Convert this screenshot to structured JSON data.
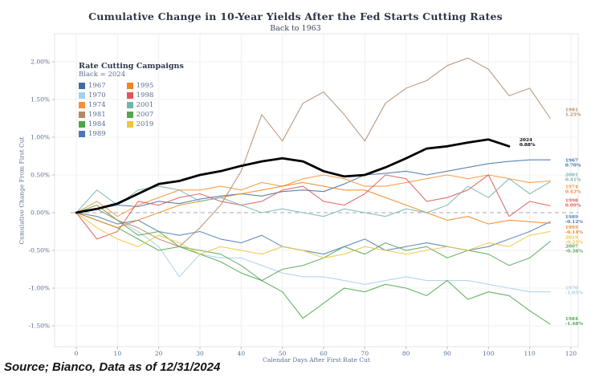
{
  "source": "Source; Bianco, Data as of 12/31/2024",
  "legend": {
    "title": "Rate Cutting Campaigns",
    "subtitle": "Black = 2024",
    "col1": [
      "1967",
      "1970",
      "1974",
      "1981",
      "1984",
      "1989"
    ],
    "col2": [
      "1995",
      "1998",
      "2001",
      "2007",
      "2019"
    ]
  },
  "chart_data": {
    "type": "line",
    "title": "Cumulative Change in 10-Year Yields After the Fed Starts Cutting Rates",
    "subtitle": "Back to 1963",
    "xlabel": "Calendar Days After First Rate Cut",
    "ylabel": "Cumulative Change From First Cut",
    "xlim": [
      0,
      120
    ],
    "ylim": [
      -1.5,
      2.0
    ],
    "grid": true,
    "zero_line": "dashed",
    "x_ticks": [
      0,
      10,
      20,
      30,
      40,
      50,
      60,
      70,
      80,
      90,
      100,
      110,
      120
    ],
    "y_ticks": [
      {
        "label": "2.00%",
        "value": 2.0
      },
      {
        "label": "1.50%",
        "value": 1.5
      },
      {
        "label": "1.00%",
        "value": 1.0
      },
      {
        "label": "0.50%",
        "value": 0.5
      },
      {
        "label": "0.00%",
        "value": 0.0
      },
      {
        "label": "-0.50%",
        "value": -0.5
      },
      {
        "label": "-1.00%",
        "value": -1.0
      },
      {
        "label": "-1.50%",
        "value": -1.5
      }
    ],
    "days": [
      0,
      5,
      10,
      15,
      20,
      25,
      30,
      35,
      40,
      45,
      50,
      55,
      60,
      65,
      70,
      75,
      80,
      85,
      90,
      95,
      100,
      105,
      110,
      115
    ],
    "series": [
      {
        "year": "1967",
        "color": "#3d6ea5",
        "end_label": "0.70%",
        "label_y": 0.66,
        "values": [
          0,
          0.05,
          0.1,
          0.08,
          0.15,
          0.12,
          0.18,
          0.22,
          0.25,
          0.22,
          0.28,
          0.3,
          0.28,
          0.38,
          0.5,
          0.52,
          0.55,
          0.5,
          0.55,
          0.6,
          0.65,
          0.68,
          0.7,
          0.7
        ]
      },
      {
        "year": "1970",
        "color": "#a9cfe8",
        "end_label": "-1.05%",
        "label_y": -1.03,
        "values": [
          0,
          0.05,
          -0.1,
          -0.25,
          -0.45,
          -0.85,
          -0.55,
          -0.6,
          -0.6,
          -0.7,
          -0.8,
          -0.85,
          -0.85,
          -0.9,
          -0.95,
          -0.9,
          -0.85,
          -0.9,
          -0.9,
          -0.9,
          -0.95,
          -1.0,
          -1.05,
          -1.05
        ]
      },
      {
        "year": "1974",
        "color": "#f79035",
        "end_label": "0.42%",
        "label_y": 0.31,
        "values": [
          0,
          0.15,
          -0.05,
          0.1,
          0.2,
          0.3,
          0.3,
          0.35,
          0.3,
          0.4,
          0.35,
          0.45,
          0.5,
          0.45,
          0.35,
          0.35,
          0.4,
          0.45,
          0.5,
          0.45,
          0.5,
          0.45,
          0.4,
          0.42
        ]
      },
      {
        "year": "1984",
        "color": "#4aa74a",
        "end_label": "-1.48%",
        "label_y": -1.44,
        "values": [
          0,
          -0.1,
          -0.2,
          -0.35,
          -0.5,
          -0.45,
          -0.55,
          -0.65,
          -0.8,
          -0.9,
          -1.05,
          -1.4,
          -1.2,
          -1.0,
          -1.05,
          -0.95,
          -1.0,
          -1.1,
          -0.9,
          -1.15,
          -1.05,
          -1.1,
          -1.3,
          -1.48
        ]
      },
      {
        "year": "1989",
        "color": "#4a7ab5",
        "end_label": "-0.12%",
        "label_y": -0.09,
        "values": [
          0,
          -0.05,
          -0.15,
          -0.1,
          -0.25,
          -0.3,
          -0.25,
          -0.35,
          -0.4,
          -0.3,
          -0.45,
          -0.5,
          -0.55,
          -0.45,
          -0.35,
          -0.5,
          -0.45,
          -0.4,
          -0.45,
          -0.5,
          -0.45,
          -0.35,
          -0.25,
          -0.12
        ]
      },
      {
        "year": "1995",
        "color": "#f0841e",
        "end_label": "-0.14%",
        "label_y": -0.23,
        "values": [
          0,
          -0.1,
          -0.2,
          -0.1,
          0.0,
          0.1,
          0.15,
          0.2,
          0.25,
          0.3,
          0.35,
          0.4,
          0.35,
          0.3,
          0.3,
          0.2,
          0.1,
          0.0,
          -0.1,
          -0.05,
          -0.15,
          -0.1,
          -0.12,
          -0.14
        ]
      },
      {
        "year": "1998",
        "color": "#e25555",
        "end_label": "0.09%",
        "label_y": 0.13,
        "values": [
          0,
          -0.35,
          -0.25,
          0.15,
          0.1,
          0.2,
          0.25,
          0.15,
          0.1,
          0.15,
          0.3,
          0.35,
          0.15,
          0.1,
          0.25,
          0.5,
          0.45,
          0.15,
          0.2,
          0.3,
          0.5,
          -0.05,
          0.15,
          0.09
        ]
      },
      {
        "year": "2001",
        "color": "#72b5af",
        "end_label": "0.41%",
        "label_y": 0.47,
        "values": [
          0,
          0.3,
          0.1,
          0.3,
          0.35,
          0.3,
          0.15,
          0.2,
          0.1,
          0.0,
          0.05,
          0.0,
          -0.05,
          0.05,
          0.0,
          -0.05,
          0.05,
          0.0,
          0.1,
          0.35,
          0.2,
          0.45,
          0.25,
          0.41
        ]
      },
      {
        "year": "2007",
        "color": "#55a453",
        "end_label": "-0.38%",
        "label_y": -0.48,
        "values": [
          0,
          0.1,
          -0.1,
          -0.3,
          -0.25,
          -0.45,
          -0.5,
          -0.55,
          -0.7,
          -0.9,
          -0.75,
          -0.7,
          -0.6,
          -0.45,
          -0.55,
          -0.4,
          -0.5,
          -0.45,
          -0.6,
          -0.5,
          -0.55,
          -0.7,
          -0.6,
          -0.38
        ]
      },
      {
        "year": "2019",
        "color": "#f0c43c",
        "end_label": "-0.25%",
        "label_y": -0.36,
        "values": [
          0,
          -0.2,
          -0.35,
          -0.45,
          -0.3,
          -0.4,
          -0.55,
          -0.45,
          -0.5,
          -0.55,
          -0.45,
          -0.5,
          -0.6,
          -0.55,
          -0.45,
          -0.5,
          -0.55,
          -0.5,
          -0.45,
          -0.5,
          -0.4,
          -0.45,
          -0.3,
          -0.25
        ]
      },
      {
        "year": "1981",
        "color": "#b08968",
        "end_label": "1.25%",
        "label_y": 1.33,
        "values": [
          0,
          0.05,
          -0.1,
          -0.2,
          -0.35,
          -0.45,
          -0.2,
          0.1,
          0.55,
          1.3,
          0.95,
          1.45,
          1.6,
          1.3,
          0.95,
          1.45,
          1.65,
          1.75,
          1.95,
          2.05,
          1.9,
          1.55,
          1.65,
          1.25
        ]
      },
      {
        "year": "2024",
        "color": "#000000",
        "end_label": "0.88%",
        "label_y": 0.93,
        "label_day": 107.5,
        "bold": true,
        "values": [
          0,
          0.05,
          0.12,
          0.25,
          0.38,
          0.42,
          0.5,
          0.55,
          0.62,
          0.68,
          0.72,
          0.68,
          0.55,
          0.48,
          0.5,
          0.6,
          0.72,
          0.85,
          0.88,
          0.93,
          0.97,
          0.88
        ]
      }
    ]
  }
}
